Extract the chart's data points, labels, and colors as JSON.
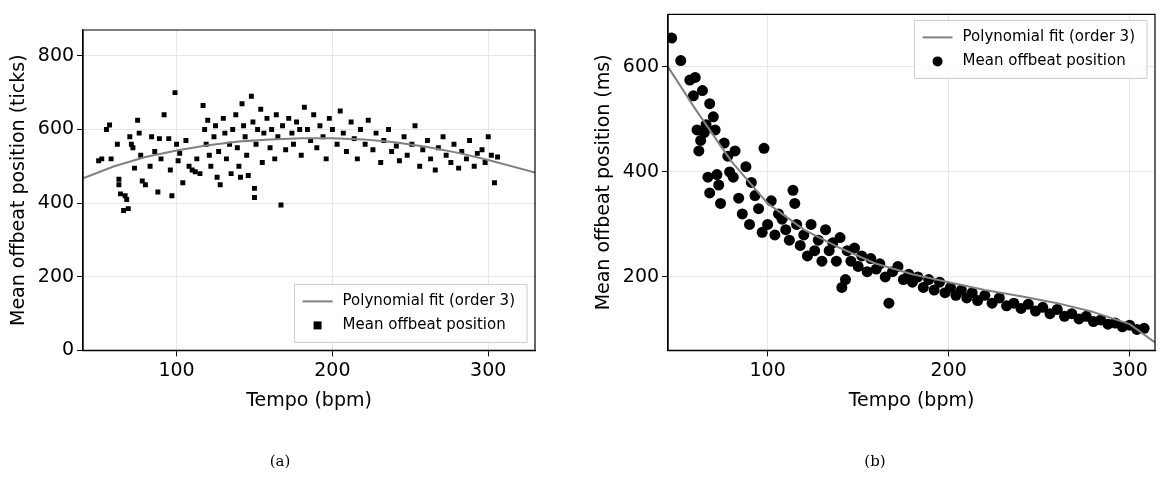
{
  "chart_data": [
    {
      "type": "scatter",
      "xlabel": "Tempo (bpm)",
      "ylabel": "Mean offbeat position (ticks)",
      "xlim": [
        40,
        330
      ],
      "ylim": [
        0,
        870
      ],
      "xticks": [
        100,
        200,
        300
      ],
      "yticks": [
        0,
        200,
        400,
        600,
        800
      ],
      "grid": true,
      "legend": "bottom right",
      "annotations": [
        "(a)"
      ],
      "series": [
        {
          "name": "Polynomial fit (order 3)",
          "type": "line",
          "color": "#808080",
          "marker": "none",
          "x": [
            40,
            60,
            80,
            100,
            120,
            140,
            160,
            180,
            200,
            220,
            240,
            260,
            280,
            300,
            330
          ],
          "values": [
            467,
            500,
            525,
            543,
            557,
            567,
            573,
            576,
            576,
            573,
            565,
            553,
            537,
            517,
            483
          ]
        },
        {
          "name": "Mean offbeat position",
          "type": "scatter",
          "color": "#000000",
          "marker": "square",
          "x": [
            50,
            52,
            55,
            57,
            58,
            62,
            63,
            63,
            64,
            66,
            67,
            68,
            69,
            70,
            71,
            72,
            73,
            75,
            76,
            77,
            78,
            80,
            83,
            84,
            86,
            88,
            89,
            90,
            92,
            95,
            96,
            97,
            99,
            100,
            101,
            102,
            104,
            106,
            108,
            110,
            112,
            113,
            115,
            117,
            118,
            119,
            120,
            121,
            122,
            124,
            125,
            126,
            127,
            128,
            130,
            131,
            132,
            134,
            135,
            136,
            138,
            139,
            140,
            141,
            142,
            143,
            144,
            145,
            146,
            148,
            149,
            150,
            150,
            151,
            152,
            154,
            155,
            156,
            158,
            160,
            161,
            163,
            164,
            165,
            167,
            168,
            170,
            172,
            174,
            175,
            177,
            179,
            180,
            182,
            184,
            186,
            188,
            190,
            192,
            194,
            196,
            198,
            200,
            203,
            205,
            207,
            209,
            212,
            214,
            216,
            218,
            221,
            223,
            226,
            228,
            231,
            233,
            236,
            238,
            241,
            243,
            246,
            248,
            251,
            253,
            256,
            258,
            261,
            263,
            266,
            268,
            271,
            273,
            276,
            278,
            281,
            283,
            286,
            288,
            291,
            293,
            296,
            298,
            300,
            302,
            304,
            306
          ],
          "values": [
            515,
            520,
            600,
            612,
            520,
            560,
            465,
            450,
            425,
            380,
            420,
            410,
            385,
            580,
            560,
            550,
            495,
            625,
            590,
            530,
            460,
            450,
            500,
            580,
            540,
            430,
            575,
            520,
            640,
            575,
            490,
            420,
            700,
            560,
            515,
            535,
            455,
            570,
            500,
            490,
            485,
            520,
            480,
            665,
            600,
            560,
            625,
            530,
            500,
            580,
            610,
            470,
            540,
            450,
            630,
            590,
            520,
            560,
            480,
            600,
            640,
            550,
            500,
            470,
            670,
            610,
            580,
            530,
            475,
            690,
            620,
            415,
            440,
            560,
            600,
            655,
            510,
            590,
            630,
            550,
            600,
            520,
            640,
            580,
            395,
            610,
            545,
            630,
            590,
            560,
            620,
            600,
            530,
            660,
            600,
            570,
            640,
            550,
            610,
            580,
            520,
            630,
            600,
            560,
            650,
            590,
            540,
            620,
            575,
            520,
            600,
            560,
            625,
            545,
            590,
            510,
            570,
            600,
            540,
            555,
            515,
            580,
            530,
            560,
            610,
            500,
            545,
            570,
            520,
            490,
            550,
            580,
            530,
            510,
            560,
            495,
            540,
            520,
            570,
            500,
            535,
            545,
            510,
            580,
            530,
            455,
            525
          ]
        }
      ]
    },
    {
      "type": "scatter",
      "xlabel": "Tempo (bpm)",
      "ylabel": "Mean offbeat position (ms)",
      "xlim": [
        45,
        314
      ],
      "ylim": [
        60,
        700
      ],
      "xticks": [
        100,
        200,
        300
      ],
      "yticks": [
        200,
        400,
        600
      ],
      "grid": true,
      "legend": "top right",
      "annotations": [
        "(b)"
      ],
      "series": [
        {
          "name": "Polynomial fit (order 3)",
          "type": "line",
          "color": "#808080",
          "marker": "none",
          "x": [
            45,
            60,
            80,
            100,
            120,
            140,
            160,
            180,
            200,
            220,
            240,
            260,
            280,
            300,
            314
          ],
          "values": [
            600,
            520,
            420,
            340,
            290,
            255,
            225,
            205,
            190,
            175,
            163,
            150,
            133,
            110,
            75
          ]
        },
        {
          "name": "Mean offbeat position",
          "type": "scatter",
          "color": "#000000",
          "marker": "circle",
          "x": [
            47,
            52,
            57,
            59,
            60,
            61,
            62,
            63,
            64,
            65,
            66,
            67,
            68,
            68,
            70,
            71,
            72,
            73,
            74,
            76,
            78,
            79,
            81,
            82,
            84,
            86,
            88,
            90,
            91,
            93,
            95,
            97,
            98,
            100,
            102,
            104,
            106,
            108,
            110,
            112,
            114,
            115,
            116,
            118,
            120,
            122,
            124,
            126,
            128,
            130,
            132,
            134,
            136,
            138,
            140,
            141,
            143,
            144,
            146,
            148,
            150,
            152,
            155,
            157,
            160,
            162,
            165,
            167,
            169,
            172,
            175,
            178,
            180,
            183,
            186,
            189,
            192,
            195,
            198,
            201,
            204,
            207,
            210,
            213,
            216,
            220,
            224,
            228,
            232,
            236,
            240,
            244,
            248,
            252,
            256,
            260,
            264,
            268,
            272,
            276,
            280,
            284,
            288,
            292,
            296,
            300,
            304,
            308
          ],
          "values": [
            655,
            612,
            575,
            545,
            580,
            480,
            440,
            460,
            555,
            475,
            490,
            390,
            530,
            360,
            505,
            480,
            395,
            375,
            340,
            455,
            430,
            400,
            390,
            440,
            350,
            320,
            410,
            300,
            380,
            355,
            330,
            285,
            445,
            300,
            345,
            280,
            320,
            310,
            290,
            270,
            365,
            340,
            300,
            260,
            280,
            240,
            300,
            250,
            270,
            230,
            290,
            250,
            265,
            230,
            275,
            180,
            195,
            250,
            230,
            255,
            220,
            240,
            210,
            235,
            215,
            225,
            200,
            150,
            210,
            220,
            195,
            205,
            190,
            200,
            180,
            195,
            175,
            190,
            170,
            180,
            165,
            175,
            160,
            170,
            155,
            165,
            150,
            160,
            145,
            150,
            140,
            148,
            135,
            142,
            130,
            138,
            125,
            130,
            120,
            125,
            115,
            118,
            110,
            112,
            105,
            108,
            100,
            102
          ]
        }
      ]
    }
  ]
}
